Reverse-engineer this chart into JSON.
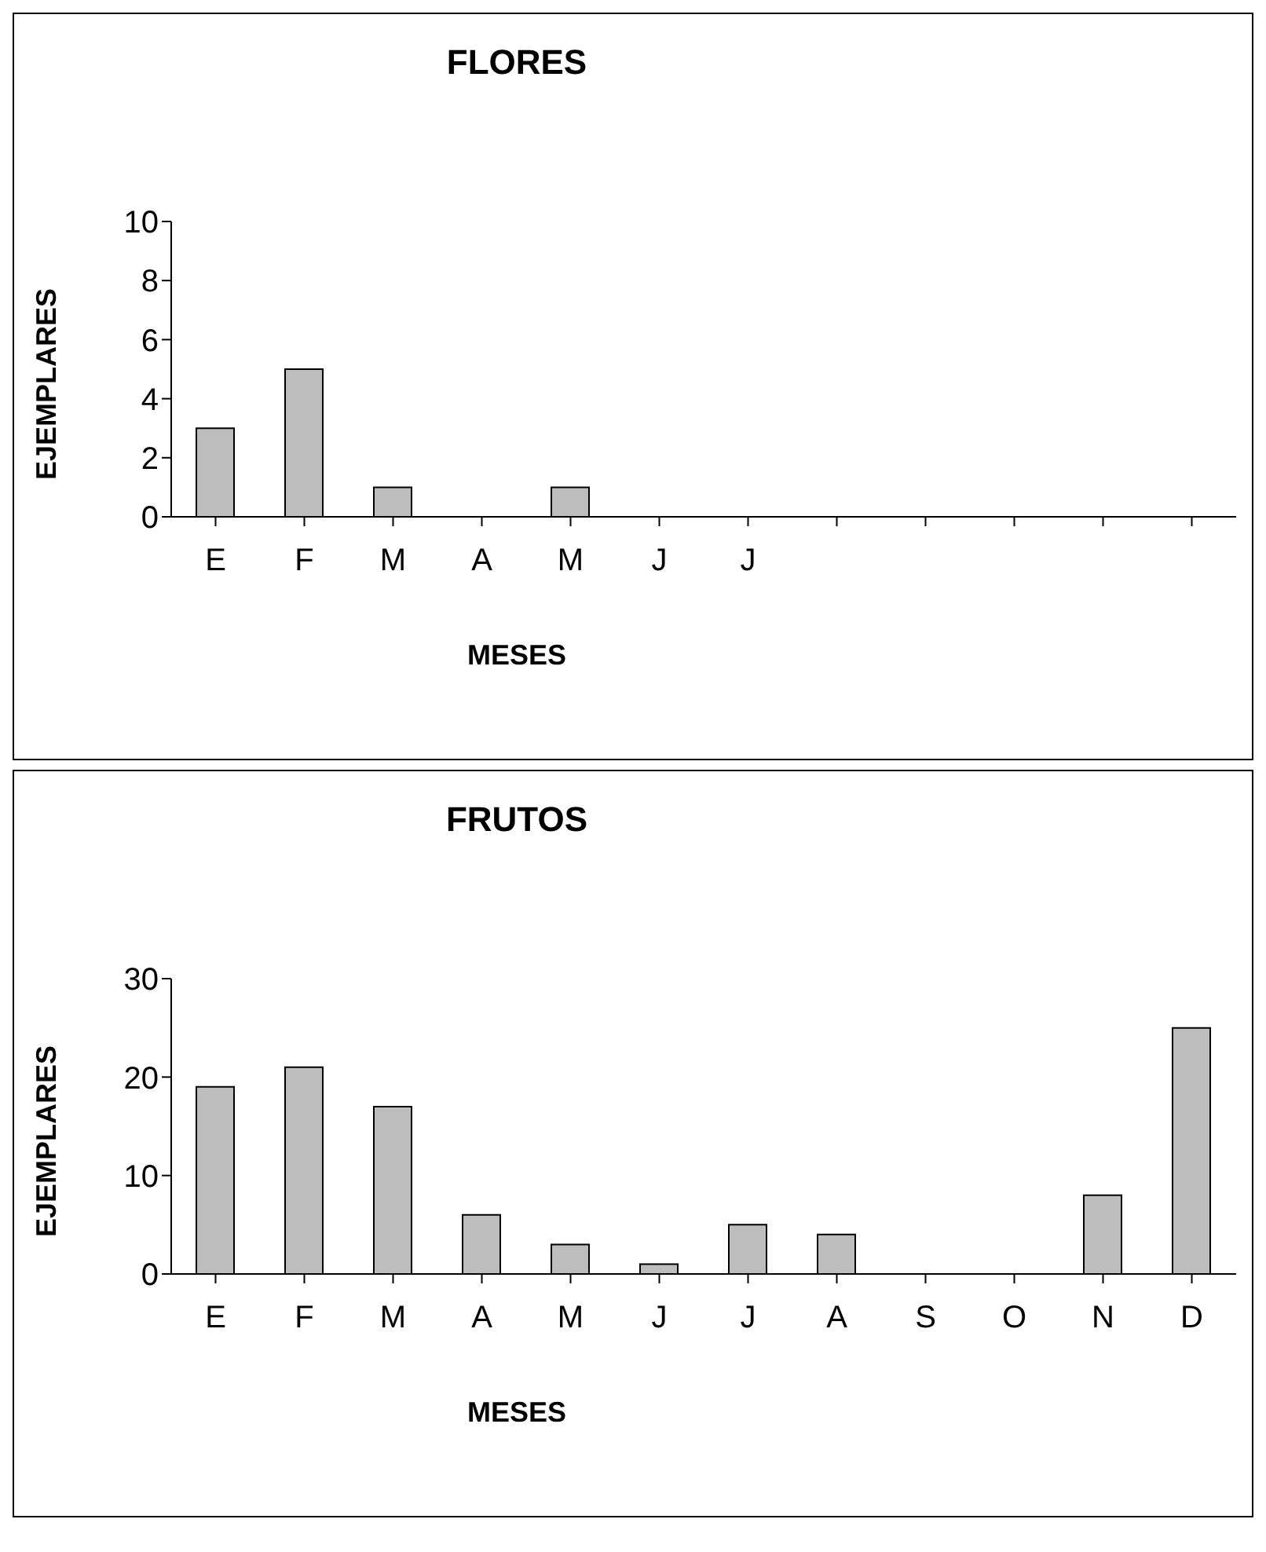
{
  "chart_data": [
    {
      "type": "bar",
      "title": "FLORES",
      "xlabel": "MESES",
      "ylabel": "EJEMPLARES",
      "categories": [
        "E",
        "F",
        "M",
        "A",
        "M",
        "J",
        "J",
        null,
        null,
        null,
        null,
        null
      ],
      "values": [
        3,
        5,
        1,
        0,
        1,
        0,
        0,
        null,
        null,
        null,
        null,
        null
      ],
      "color": "#bdbdbd",
      "ylim": [
        0,
        10
      ],
      "yticks": [
        0,
        2,
        4,
        6,
        8,
        10
      ],
      "grid": false,
      "legend": false
    },
    {
      "type": "bar",
      "title": "FRUTOS",
      "xlabel": "MESES",
      "ylabel": "EJEMPLARES",
      "categories": [
        "E",
        "F",
        "M",
        "A",
        "M",
        "J",
        "J",
        "A",
        "S",
        "O",
        "N",
        "D"
      ],
      "values": [
        19,
        21,
        17,
        6,
        3,
        1,
        5,
        4,
        0,
        0,
        8,
        25
      ],
      "color": "#bdbdbd",
      "ylim": [
        0,
        30
      ],
      "yticks": [
        0,
        10,
        20,
        30
      ],
      "grid": false,
      "legend": false
    }
  ]
}
